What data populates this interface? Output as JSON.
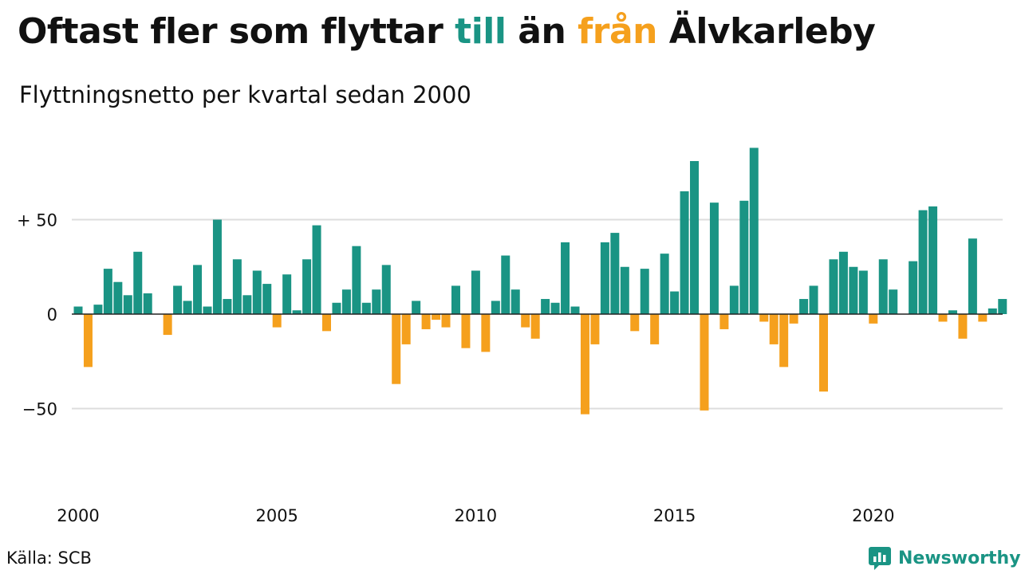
{
  "title": {
    "part1": "Oftast fler som flyttar ",
    "to_word": "till",
    "part2": " än ",
    "from_word": "från",
    "part3": " Älvkarleby"
  },
  "subtitle": "Flyttningsnetto per kvartal sedan 2000",
  "source": "Källa: SCB",
  "brand": {
    "name": "Newsworthy",
    "logo_icon": "newsworthy-chart-logo-icon"
  },
  "colors": {
    "positive": "#1a9484",
    "negative": "#f5a01d",
    "grid": "#dddddd",
    "brand": "#1a9484"
  },
  "chart_data": {
    "type": "bar",
    "x_ticks": [
      "2000",
      "2005",
      "2010",
      "2015",
      "2020"
    ],
    "y_ticks": [
      {
        "value": 50,
        "label": "+ 50"
      },
      {
        "value": 0,
        "label": "0"
      },
      {
        "value": -50,
        "label": "−50"
      }
    ],
    "ylim": [
      -75,
      90
    ],
    "grid": "horizontal",
    "start": {
      "year": 2000,
      "quarter": 1
    },
    "values": [
      4,
      -28,
      5,
      24,
      17,
      10,
      33,
      11,
      0,
      -11,
      15,
      7,
      26,
      4,
      50,
      8,
      29,
      10,
      23,
      16,
      -7,
      21,
      2,
      29,
      47,
      -9,
      6,
      13,
      36,
      6,
      13,
      26,
      -37,
      -16,
      7,
      -8,
      -3,
      -7,
      15,
      -18,
      23,
      -20,
      7,
      31,
      13,
      -7,
      -13,
      8,
      6,
      38,
      4,
      -53,
      -16,
      38,
      43,
      25,
      -9,
      24,
      -16,
      32,
      12,
      65,
      81,
      -51,
      59,
      -8,
      15,
      60,
      88,
      -4,
      -16,
      -28,
      -5,
      8,
      15,
      -41,
      29,
      33,
      25,
      23,
      -5,
      29,
      13,
      0,
      28,
      55,
      57,
      -4,
      2,
      -13,
      40,
      -4,
      3,
      8
    ]
  }
}
